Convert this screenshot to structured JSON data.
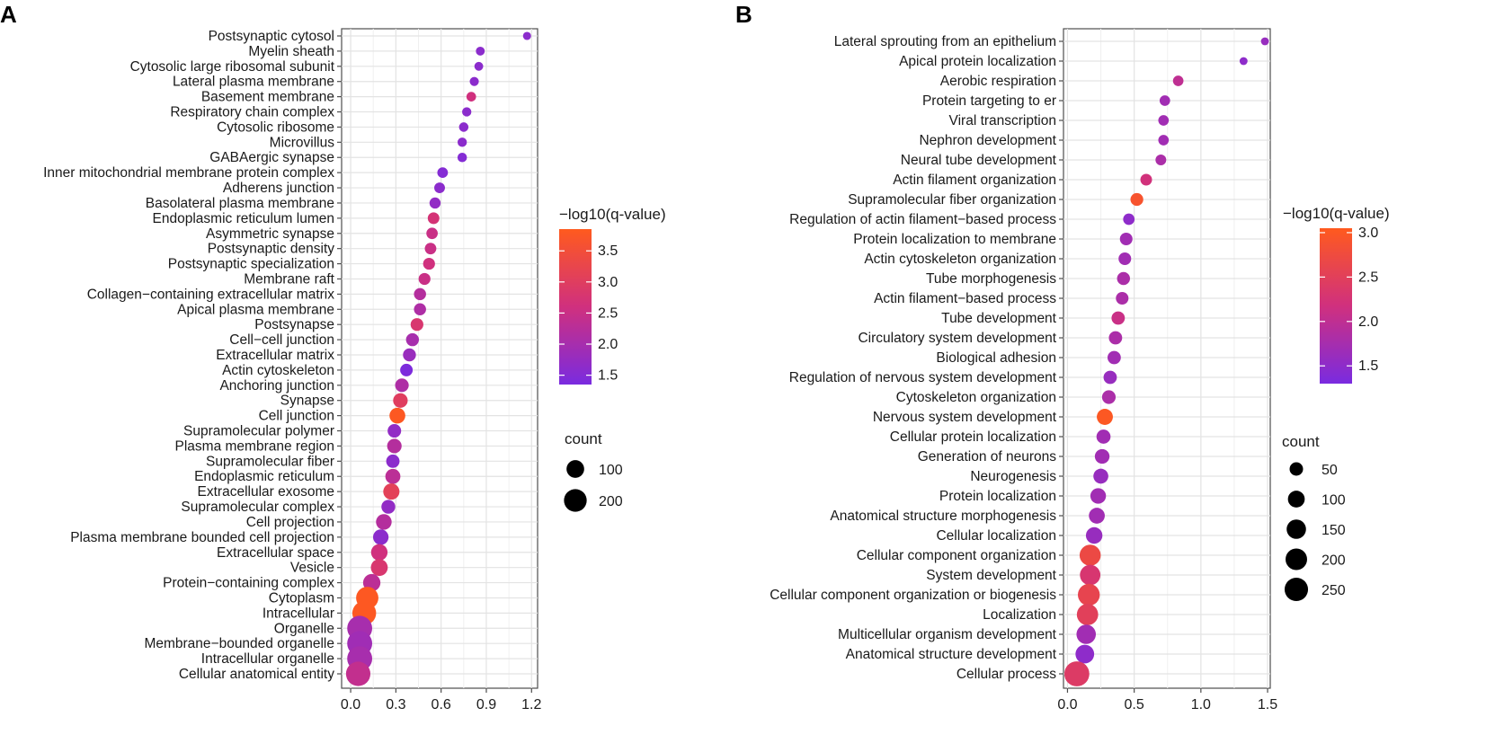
{
  "chart_data": [
    {
      "panel_label": "A",
      "type": "scatter",
      "subtype": "dot-plot",
      "x_ticks": [
        0.0,
        0.3,
        0.6,
        0.9,
        1.2
      ],
      "x_tick_labels": [
        "0.0",
        "0.3",
        "0.6",
        "0.9",
        "1.2"
      ],
      "xlim": [
        -0.06,
        1.24
      ],
      "color_scale": {
        "title": "−log10(q-value)",
        "min": 1.35,
        "max": 3.85,
        "ticks": [
          1.5,
          2.0,
          2.5,
          3.0,
          3.5
        ],
        "tick_labels": [
          "1.5",
          "2.0",
          "2.5",
          "3.0",
          "3.5"
        ]
      },
      "size_legend": {
        "title": "count",
        "values": [
          100,
          200
        ],
        "labels": [
          "100",
          "200"
        ]
      },
      "categories": [
        "Postsynaptic cytosol",
        "Myelin sheath",
        "Cytosolic large ribosomal subunit",
        "Lateral plasma membrane",
        "Basement membrane",
        "Respiratory chain complex",
        "Cytosolic ribosome",
        "Microvillus",
        "GABAergic synapse",
        "Inner mitochondrial membrane protein complex",
        "Adherens junction",
        "Basolateral plasma membrane",
        "Endoplasmic reticulum lumen",
        "Asymmetric synapse",
        "Postsynaptic density",
        "Postsynaptic specialization",
        "Membrane raft",
        "Collagen−containing extracellular matrix",
        "Apical plasma membrane",
        "Postsynapse",
        "Cell−cell junction",
        "Extracellular matrix",
        "Actin cytoskeleton",
        "Anchoring junction",
        "Synapse",
        "Cell junction",
        "Supramolecular polymer",
        "Plasma membrane region",
        "Supramolecular fiber",
        "Endoplasmic reticulum",
        "Extracellular exosome",
        "Supramolecular complex",
        "Cell projection",
        "Plasma membrane bounded cell projection",
        "Extracellular space",
        "Vesicle",
        "Protein−containing complex",
        "Cytoplasm",
        "Intracellular",
        "Organelle",
        "Membrane−bounded organelle",
        "Intracellular organelle",
        "Cellular anatomical entity"
      ],
      "x": [
        1.17,
        0.86,
        0.85,
        0.82,
        0.8,
        0.77,
        0.75,
        0.74,
        0.74,
        0.61,
        0.59,
        0.56,
        0.55,
        0.54,
        0.53,
        0.52,
        0.49,
        0.46,
        0.46,
        0.44,
        0.41,
        0.39,
        0.37,
        0.34,
        0.33,
        0.31,
        0.29,
        0.29,
        0.28,
        0.28,
        0.27,
        0.25,
        0.22,
        0.2,
        0.19,
        0.19,
        0.14,
        0.11,
        0.09,
        0.06,
        0.06,
        0.06,
        0.05
      ],
      "q": [
        1.6,
        1.6,
        1.6,
        1.6,
        2.6,
        1.6,
        1.6,
        1.6,
        1.5,
        1.5,
        1.6,
        1.7,
        2.7,
        2.5,
        2.5,
        2.6,
        2.5,
        2.2,
        2.1,
        2.8,
        2.0,
        1.8,
        1.4,
        2.1,
        3.0,
        3.8,
        1.7,
        2.2,
        1.6,
        2.3,
        3.1,
        1.7,
        2.2,
        1.6,
        2.6,
        2.8,
        2.3,
        3.8,
        3.8,
        2.0,
        1.9,
        2.0,
        2.4
      ],
      "count": [
        5,
        8,
        8,
        9,
        12,
        10,
        11,
        10,
        11,
        18,
        19,
        22,
        26,
        24,
        25,
        28,
        28,
        30,
        30,
        36,
        38,
        38,
        34,
        45,
        56,
        72,
        44,
        55,
        42,
        62,
        78,
        48,
        70,
        68,
        82,
        88,
        95,
        190,
        225,
        255,
        255,
        255,
        240
      ]
    },
    {
      "panel_label": "B",
      "type": "scatter",
      "subtype": "dot-plot",
      "x_ticks": [
        0.0,
        0.5,
        1.0,
        1.5
      ],
      "x_tick_labels": [
        "0.0",
        "0.5",
        "1.0",
        "1.5"
      ],
      "xlim": [
        -0.03,
        1.52
      ],
      "color_scale": {
        "title": "−log10(q-value)",
        "min": 1.3,
        "max": 3.05,
        "ticks": [
          1.5,
          2.0,
          2.5,
          3.0
        ],
        "tick_labels": [
          "1.5",
          "2.0",
          "2.5",
          "3.0"
        ]
      },
      "size_legend": {
        "title": "count",
        "values": [
          50,
          100,
          150,
          200,
          250
        ],
        "labels": [
          "50",
          "100",
          "150",
          "200",
          "250"
        ]
      },
      "categories": [
        "Lateral sprouting from an epithelium",
        "Apical protein localization",
        "Aerobic respiration",
        "Protein targeting to er",
        "Viral transcription",
        "Nephron development",
        "Neural tube development",
        "Actin filament organization",
        "Supramolecular fiber organization",
        "Regulation of actin filament−based process",
        "Protein localization to membrane",
        "Actin cytoskeleton organization",
        "Tube morphogenesis",
        "Actin filament−based process",
        "Tube development",
        "Circulatory system development",
        "Biological adhesion",
        "Regulation of nervous system development",
        "Cytoskeleton organization",
        "Nervous system development",
        "Cellular protein localization",
        "Generation of neurons",
        "Neurogenesis",
        "Protein localization",
        "Anatomical structure morphogenesis",
        "Cellular localization",
        "Cellular component organization",
        "System development",
        "Cellular component organization or biogenesis",
        "Localization",
        "Multicellular organism development",
        "Anatomical structure development",
        "Cellular process"
      ],
      "x": [
        1.48,
        1.32,
        0.83,
        0.73,
        0.72,
        0.72,
        0.7,
        0.59,
        0.52,
        0.46,
        0.44,
        0.43,
        0.42,
        0.41,
        0.38,
        0.36,
        0.35,
        0.32,
        0.31,
        0.28,
        0.27,
        0.26,
        0.25,
        0.23,
        0.22,
        0.2,
        0.17,
        0.17,
        0.16,
        0.15,
        0.14,
        0.13,
        0.07
      ],
      "q": [
        1.6,
        1.5,
        2.0,
        1.7,
        1.7,
        1.7,
        1.8,
        2.2,
        2.9,
        1.5,
        1.7,
        1.7,
        1.8,
        1.8,
        2.1,
        1.8,
        1.7,
        1.6,
        1.8,
        3.0,
        1.7,
        1.7,
        1.6,
        1.7,
        1.7,
        1.6,
        2.7,
        2.3,
        2.6,
        2.5,
        1.7,
        1.5,
        2.4
      ],
      "count": [
        5,
        5,
        20,
        20,
        20,
        20,
        22,
        30,
        42,
        28,
        40,
        40,
        44,
        40,
        48,
        48,
        48,
        48,
        52,
        88,
        58,
        66,
        70,
        80,
        85,
        95,
        190,
        175,
        210,
        195,
        150,
        135,
        295
      ]
    }
  ]
}
